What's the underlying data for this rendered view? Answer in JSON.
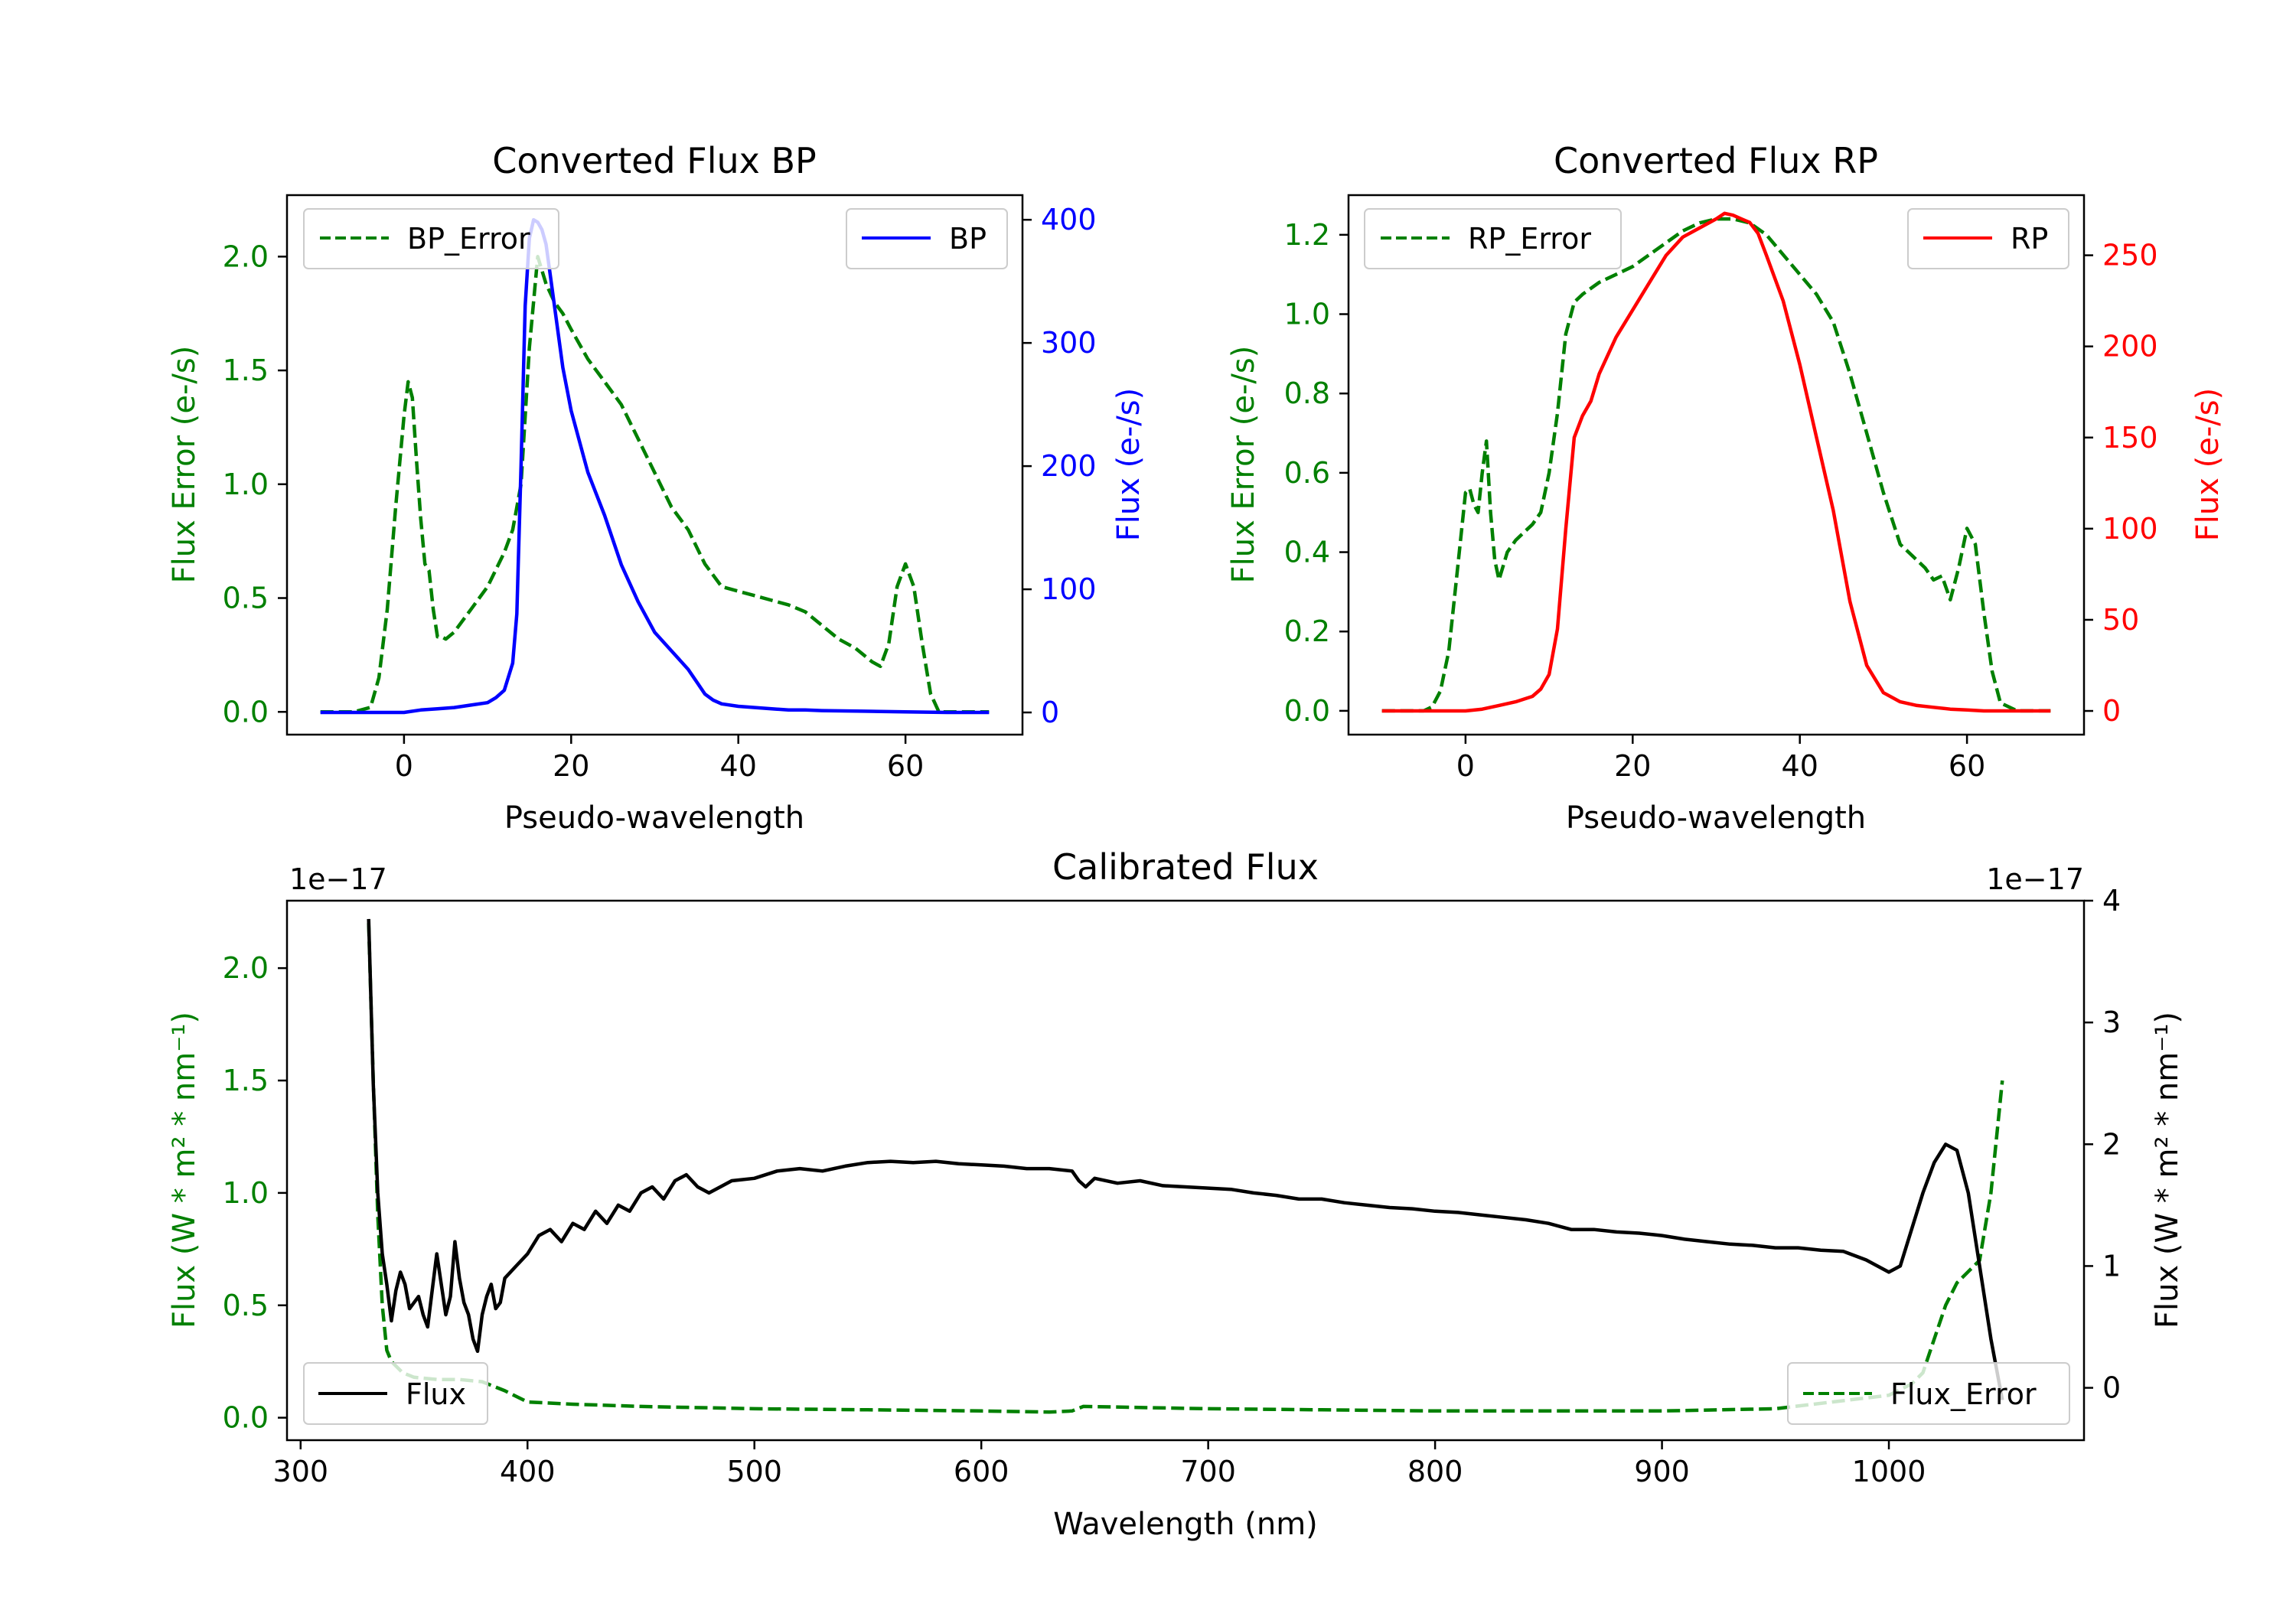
{
  "chart_data": [
    {
      "id": "bp",
      "type": "line",
      "title": "Converted Flux BP",
      "xlabel": "Pseudo-wavelength",
      "ylabel_left": "Flux Error (e-/s)",
      "ylabel_right": "Flux (e-/s)",
      "xlim": [
        -14,
        74
      ],
      "ylim_left": [
        -0.1,
        2.27
      ],
      "ylim_right": [
        -18,
        420
      ],
      "x_ticks": [
        0,
        20,
        40,
        60
      ],
      "x_tick_labels": [
        "0",
        "20",
        "40",
        "60"
      ],
      "yleft_ticks": [
        0,
        0.5,
        1.0,
        1.5,
        2.0
      ],
      "yleft_tick_labels": [
        "0.0",
        "0.5",
        "1.0",
        "1.5",
        "2.0"
      ],
      "yright_ticks": [
        0,
        100,
        200,
        300,
        400
      ],
      "yright_tick_labels": [
        "0",
        "100",
        "200",
        "300",
        "400"
      ],
      "left_color": "#008000",
      "right_color": "#0000ff",
      "series": [
        {
          "name": "BP_Error",
          "axis": "left",
          "style": "dashed",
          "color": "#008000",
          "legend": "top-left",
          "x": [
            -10,
            -6,
            -4,
            -3,
            -2,
            -1,
            0,
            0.5,
            1,
            1.5,
            2,
            2.5,
            3,
            3.5,
            4,
            4.5,
            5,
            6,
            7,
            8,
            10,
            12,
            13,
            14,
            15,
            16,
            17,
            18,
            19,
            20,
            22,
            24,
            26,
            28,
            30,
            32,
            34,
            36,
            38,
            40,
            42,
            44,
            46,
            48,
            50,
            52,
            54,
            56,
            57,
            58,
            59,
            60,
            61,
            62,
            63,
            64,
            66,
            70
          ],
          "values": [
            0,
            0,
            0.02,
            0.15,
            0.45,
            0.9,
            1.3,
            1.45,
            1.38,
            1.1,
            0.85,
            0.65,
            0.62,
            0.45,
            0.33,
            0.33,
            0.32,
            0.35,
            0.4,
            0.45,
            0.55,
            0.7,
            0.8,
            1.0,
            1.6,
            2.0,
            1.88,
            1.8,
            1.75,
            1.68,
            1.55,
            1.45,
            1.35,
            1.2,
            1.05,
            0.9,
            0.8,
            0.65,
            0.55,
            0.53,
            0.51,
            0.49,
            0.47,
            0.44,
            0.38,
            0.32,
            0.28,
            0.22,
            0.2,
            0.3,
            0.55,
            0.65,
            0.55,
            0.3,
            0.08,
            0.0,
            0,
            0
          ]
        },
        {
          "name": "BP",
          "axis": "right",
          "style": "solid",
          "color": "#0000ff",
          "legend": "top-right",
          "x": [
            -10,
            -5,
            0,
            2,
            4,
            6,
            8,
            10,
            11,
            12,
            13,
            13.5,
            14,
            14.5,
            15,
            15.5,
            16,
            16.5,
            17,
            17.5,
            18,
            19,
            20,
            22,
            24,
            26,
            28,
            30,
            32,
            34,
            35,
            36,
            37,
            38,
            40,
            42,
            44,
            46,
            48,
            50,
            55,
            60,
            65,
            70
          ],
          "values": [
            0,
            0,
            0,
            2,
            3,
            4,
            6,
            8,
            12,
            18,
            40,
            80,
            200,
            330,
            385,
            400,
            398,
            392,
            380,
            355,
            330,
            280,
            245,
            195,
            160,
            120,
            90,
            65,
            50,
            35,
            25,
            15,
            10,
            7,
            5,
            4,
            3,
            2,
            2,
            1.5,
            1,
            0.5,
            0,
            0
          ]
        }
      ]
    },
    {
      "id": "rp",
      "type": "line",
      "title": "Converted Flux RP",
      "xlabel": "Pseudo-wavelength",
      "ylabel_left": "Flux Error (e-/s)",
      "ylabel_right": "Flux (e-/s)",
      "xlim": [
        -14,
        74
      ],
      "ylim_left": [
        -0.06,
        1.3
      ],
      "ylim_right": [
        -13,
        283
      ],
      "x_ticks": [
        0,
        20,
        40,
        60
      ],
      "x_tick_labels": [
        "0",
        "20",
        "40",
        "60"
      ],
      "yleft_ticks": [
        0,
        0.2,
        0.4,
        0.6,
        0.8,
        1.0,
        1.2
      ],
      "yleft_tick_labels": [
        "0.0",
        "0.2",
        "0.4",
        "0.6",
        "0.8",
        "1.0",
        "1.2"
      ],
      "yright_ticks": [
        0,
        50,
        100,
        150,
        200,
        250
      ],
      "yright_tick_labels": [
        "0",
        "50",
        "100",
        "150",
        "200",
        "250"
      ],
      "left_color": "#008000",
      "right_color": "#ff0000",
      "series": [
        {
          "name": "RP_Error",
          "axis": "left",
          "style": "dashed",
          "color": "#008000",
          "legend": "top-left",
          "x": [
            -10,
            -5,
            -4,
            -3,
            -2,
            -1,
            0,
            0.5,
            1,
            1.5,
            2,
            2.5,
            3,
            3.5,
            4,
            5,
            6,
            7,
            8,
            9,
            10,
            11,
            12,
            13,
            14,
            16,
            18,
            20,
            22,
            24,
            26,
            28,
            30,
            32,
            34,
            36,
            38,
            40,
            42,
            44,
            46,
            48,
            50,
            52,
            54,
            55,
            56,
            57,
            58,
            59,
            60,
            61,
            62,
            63,
            64,
            66,
            70
          ],
          "values": [
            0,
            0,
            0.01,
            0.05,
            0.15,
            0.35,
            0.55,
            0.56,
            0.52,
            0.5,
            0.6,
            0.68,
            0.5,
            0.38,
            0.33,
            0.4,
            0.43,
            0.45,
            0.47,
            0.5,
            0.6,
            0.75,
            0.95,
            1.03,
            1.05,
            1.08,
            1.1,
            1.12,
            1.15,
            1.18,
            1.21,
            1.23,
            1.24,
            1.24,
            1.23,
            1.2,
            1.15,
            1.1,
            1.05,
            0.98,
            0.85,
            0.7,
            0.55,
            0.42,
            0.38,
            0.36,
            0.33,
            0.34,
            0.28,
            0.36,
            0.46,
            0.42,
            0.25,
            0.1,
            0.02,
            0,
            0
          ]
        },
        {
          "name": "RP",
          "axis": "right",
          "style": "solid",
          "color": "#ff0000",
          "legend": "top-right",
          "x": [
            -10,
            -5,
            0,
            2,
            4,
            6,
            8,
            9,
            10,
            11,
            12,
            13,
            14,
            15,
            16,
            18,
            20,
            22,
            24,
            26,
            28,
            30,
            31,
            32,
            33,
            34,
            35,
            36,
            38,
            40,
            42,
            44,
            46,
            48,
            50,
            52,
            54,
            56,
            58,
            60,
            62,
            65,
            70
          ],
          "values": [
            0,
            0,
            0,
            1,
            3,
            5,
            8,
            12,
            20,
            45,
            100,
            150,
            162,
            170,
            185,
            205,
            220,
            235,
            250,
            260,
            265,
            270,
            273,
            272,
            270,
            268,
            262,
            250,
            225,
            190,
            150,
            110,
            60,
            25,
            10,
            5,
            3,
            2,
            1,
            0.5,
            0,
            0,
            0
          ]
        }
      ]
    },
    {
      "id": "calibrated",
      "type": "line",
      "title": "Calibrated Flux",
      "xlabel": "Wavelength (nm)",
      "ylabel_left": "Flux (W * m² * nm⁻¹)",
      "ylabel_right": "Flux (W * m² * nm⁻¹)",
      "offset_left": "1e−17",
      "offset_right": "1e−17",
      "xlim": [
        294,
        1086
      ],
      "ylim_left": [
        -0.1,
        2.3
      ],
      "ylim_right": [
        -0.43,
        4.0
      ],
      "x_ticks": [
        300,
        400,
        500,
        600,
        700,
        800,
        900,
        1000
      ],
      "x_tick_labels": [
        "300",
        "400",
        "500",
        "600",
        "700",
        "800",
        "900",
        "1000"
      ],
      "yleft_ticks": [
        0,
        0.5,
        1.0,
        1.5,
        2.0
      ],
      "yleft_tick_labels": [
        "0.0",
        "0.5",
        "1.0",
        "1.5",
        "2.0"
      ],
      "yright_ticks": [
        0,
        1,
        2,
        3,
        4
      ],
      "yright_tick_labels": [
        "0",
        "1",
        "2",
        "3",
        "4"
      ],
      "left_color": "#008000",
      "right_color": "#000000",
      "series": [
        {
          "name": "Flux_Error",
          "axis": "left",
          "style": "dashed",
          "color": "#008000",
          "legend": "bottom-right",
          "x": [
            330,
            332,
            334,
            336,
            338,
            340,
            345,
            350,
            360,
            370,
            380,
            390,
            400,
            420,
            450,
            500,
            550,
            600,
            630,
            640,
            645,
            700,
            750,
            800,
            850,
            900,
            950,
            1000,
            1010,
            1015,
            1020,
            1025,
            1030,
            1035,
            1040,
            1045,
            1050
          ],
          "values": [
            2.2,
            1.5,
            0.9,
            0.5,
            0.3,
            0.25,
            0.2,
            0.18,
            0.17,
            0.17,
            0.16,
            0.12,
            0.07,
            0.06,
            0.05,
            0.04,
            0.035,
            0.03,
            0.025,
            0.03,
            0.05,
            0.04,
            0.035,
            0.03,
            0.03,
            0.03,
            0.04,
            0.1,
            0.15,
            0.2,
            0.35,
            0.5,
            0.6,
            0.65,
            0.7,
            1.0,
            1.5
          ]
        },
        {
          "name": "Flux",
          "axis": "right",
          "style": "solid",
          "color": "#000000",
          "legend": "bottom-left",
          "x": [
            330,
            332,
            334,
            336,
            338,
            340,
            342,
            344,
            346,
            348,
            350,
            352,
            354,
            356,
            358,
            360,
            362,
            364,
            366,
            368,
            370,
            372,
            374,
            376,
            378,
            380,
            382,
            384,
            386,
            388,
            390,
            395,
            400,
            405,
            410,
            415,
            420,
            425,
            430,
            435,
            440,
            445,
            450,
            455,
            460,
            465,
            470,
            475,
            480,
            485,
            490,
            500,
            510,
            520,
            530,
            540,
            550,
            560,
            570,
            580,
            590,
            600,
            610,
            620,
            630,
            640,
            643,
            646,
            650,
            660,
            670,
            680,
            690,
            700,
            710,
            720,
            730,
            740,
            750,
            760,
            770,
            780,
            790,
            800,
            810,
            820,
            830,
            840,
            850,
            860,
            870,
            880,
            890,
            900,
            910,
            920,
            930,
            940,
            950,
            960,
            970,
            980,
            990,
            1000,
            1005,
            1010,
            1015,
            1020,
            1025,
            1030,
            1035,
            1040,
            1045,
            1050
          ],
          "values": [
            3.85,
            2.5,
            1.6,
            1.1,
            0.85,
            0.55,
            0.8,
            0.95,
            0.85,
            0.65,
            0.7,
            0.75,
            0.6,
            0.5,
            0.8,
            1.1,
            0.85,
            0.6,
            0.75,
            1.2,
            0.9,
            0.7,
            0.6,
            0.4,
            0.3,
            0.6,
            0.75,
            0.85,
            0.65,
            0.7,
            0.9,
            1.0,
            1.1,
            1.25,
            1.3,
            1.2,
            1.35,
            1.3,
            1.45,
            1.35,
            1.5,
            1.45,
            1.6,
            1.65,
            1.55,
            1.7,
            1.75,
            1.65,
            1.6,
            1.65,
            1.7,
            1.72,
            1.78,
            1.8,
            1.78,
            1.82,
            1.85,
            1.86,
            1.85,
            1.86,
            1.84,
            1.83,
            1.82,
            1.8,
            1.8,
            1.78,
            1.7,
            1.65,
            1.72,
            1.68,
            1.7,
            1.66,
            1.65,
            1.64,
            1.63,
            1.6,
            1.58,
            1.55,
            1.55,
            1.52,
            1.5,
            1.48,
            1.47,
            1.45,
            1.44,
            1.42,
            1.4,
            1.38,
            1.35,
            1.3,
            1.3,
            1.28,
            1.27,
            1.25,
            1.22,
            1.2,
            1.18,
            1.17,
            1.15,
            1.15,
            1.13,
            1.12,
            1.05,
            0.95,
            1.0,
            1.3,
            1.6,
            1.85,
            2.0,
            1.95,
            1.6,
            1.0,
            0.4,
            -0.1
          ]
        }
      ]
    }
  ]
}
